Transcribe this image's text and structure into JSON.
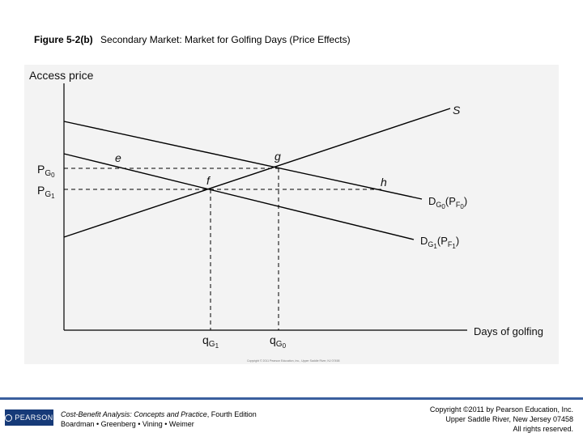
{
  "slide": {
    "figure_number": "Figure 5-2(b)",
    "figure_caption": "Secondary Market: Market for Golfing Days (Price Effects)"
  },
  "diagram": {
    "y_axis_label": "Access price",
    "x_axis_label": "Days of golfing",
    "price_labels": [
      {
        "main": "P",
        "sub": "G",
        "subsub": "0"
      },
      {
        "main": "P",
        "sub": "G",
        "subsub": "1"
      }
    ],
    "quantity_labels": [
      {
        "main": "q",
        "sub": "G",
        "subsub": "1"
      },
      {
        "main": "q",
        "sub": "G",
        "subsub": "0"
      }
    ],
    "curves": {
      "supply": "S",
      "demand_0": {
        "main": "D",
        "sub": "G",
        "subsub": "0",
        "paren_main": "P",
        "paren_sub": "F",
        "paren_subsub": "0"
      },
      "demand_1": {
        "main": "D",
        "sub": "G",
        "subsub": "1",
        "paren_main": "P",
        "paren_sub": "F",
        "paren_subsub": "1"
      }
    },
    "points": [
      "e",
      "g",
      "f",
      "h"
    ],
    "image_credit": "Copyright © 2011 Pearson Education, Inc., Upper Saddle River, NJ 07458"
  },
  "footer": {
    "logo_text": "PEARSON",
    "book_title": "Cost-Benefit Analysis: Concepts and Practice",
    "book_edition": ", Fourth Edition",
    "authors": "Boardman • Greenberg • Vining • Weimer",
    "copyright_line1": "Copyright ©2011 by Pearson Education, Inc.",
    "copyright_line2": "Upper Saddle River, New Jersey 07458",
    "copyright_line3": "All rights reserved."
  }
}
